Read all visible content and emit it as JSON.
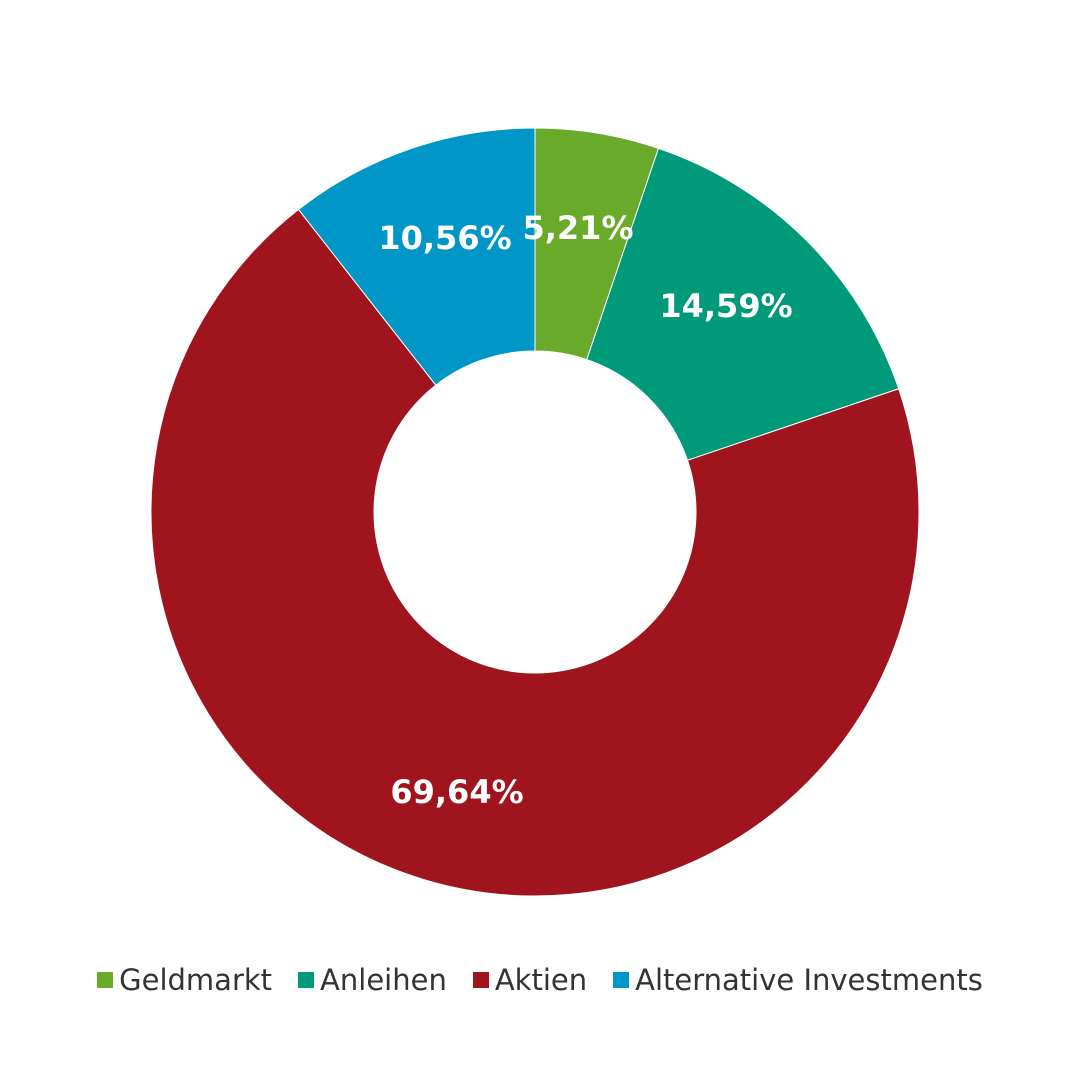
{
  "chart_data": {
    "type": "pie",
    "variant": "donut",
    "series": [
      {
        "name": "Geldmarkt",
        "value": 5.21,
        "label": "5,21%",
        "color": "#6aaa2a"
      },
      {
        "name": "Anleihen",
        "value": 14.59,
        "label": "14,59%",
        "color": "#009a7b"
      },
      {
        "name": "Aktien",
        "value": 69.64,
        "label": "69,64%",
        "color": "#a0141e"
      },
      {
        "name": "Alternative Investments",
        "value": 10.56,
        "label": "10,56%",
        "color": "#0096c8"
      }
    ],
    "legend_position": "bottom-center"
  }
}
